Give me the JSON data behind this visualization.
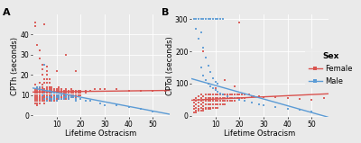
{
  "panel_A": {
    "label": "A",
    "ylabel": "CPTh (seconds)",
    "xlabel": "Lifetime Ostracism",
    "xlim": [
      0,
      57
    ],
    "ylim": [
      -1,
      50
    ],
    "xticks": [
      10,
      20,
      30,
      40,
      50
    ],
    "yticks": [
      0,
      10,
      20,
      30,
      40
    ],
    "female_line_x": [
      0,
      57
    ],
    "female_line_y": [
      11.5,
      12.3
    ],
    "male_line_x": [
      0,
      57
    ],
    "male_line_y": [
      13.5,
      0.5
    ],
    "female_points": [
      [
        1,
        46
      ],
      [
        1,
        44
      ],
      [
        2,
        35
      ],
      [
        3,
        32
      ],
      [
        3,
        28
      ],
      [
        4,
        25
      ],
      [
        4,
        23
      ],
      [
        4,
        20
      ],
      [
        5,
        45
      ],
      [
        5,
        18
      ],
      [
        5,
        16
      ],
      [
        6,
        24
      ],
      [
        6,
        22
      ],
      [
        6,
        20
      ],
      [
        6,
        18
      ],
      [
        6,
        16
      ],
      [
        6,
        14
      ],
      [
        7,
        18
      ],
      [
        7,
        16
      ],
      [
        7,
        14
      ],
      [
        7,
        12
      ],
      [
        7,
        10
      ],
      [
        1,
        15
      ],
      [
        1,
        13
      ],
      [
        1,
        12
      ],
      [
        1,
        11
      ],
      [
        1,
        10
      ],
      [
        1,
        9
      ],
      [
        1,
        8
      ],
      [
        1,
        7
      ],
      [
        1,
        6
      ],
      [
        2,
        14
      ],
      [
        2,
        13
      ],
      [
        2,
        12
      ],
      [
        2,
        11
      ],
      [
        2,
        10
      ],
      [
        2,
        9
      ],
      [
        2,
        8
      ],
      [
        2,
        7
      ],
      [
        2,
        6
      ],
      [
        2,
        5
      ],
      [
        3,
        16
      ],
      [
        3,
        14
      ],
      [
        3,
        13
      ],
      [
        3,
        12
      ],
      [
        3,
        11
      ],
      [
        3,
        10
      ],
      [
        3,
        9
      ],
      [
        3,
        8
      ],
      [
        3,
        7
      ],
      [
        3,
        6
      ],
      [
        4,
        15
      ],
      [
        4,
        14
      ],
      [
        4,
        13
      ],
      [
        4,
        12
      ],
      [
        4,
        11
      ],
      [
        4,
        10
      ],
      [
        4,
        9
      ],
      [
        4,
        8
      ],
      [
        4,
        7
      ],
      [
        5,
        13
      ],
      [
        5,
        12
      ],
      [
        5,
        11
      ],
      [
        5,
        10
      ],
      [
        5,
        9
      ],
      [
        5,
        8
      ],
      [
        5,
        7
      ],
      [
        5,
        6
      ],
      [
        6,
        13
      ],
      [
        6,
        12
      ],
      [
        6,
        11
      ],
      [
        6,
        10
      ],
      [
        6,
        9
      ],
      [
        6,
        8
      ],
      [
        6,
        7
      ],
      [
        7,
        14
      ],
      [
        7,
        13
      ],
      [
        7,
        12
      ],
      [
        7,
        11
      ],
      [
        7,
        9
      ],
      [
        7,
        8
      ],
      [
        7,
        7
      ],
      [
        8,
        14
      ],
      [
        8,
        13
      ],
      [
        8,
        12
      ],
      [
        8,
        11
      ],
      [
        8,
        10
      ],
      [
        8,
        9
      ],
      [
        8,
        8
      ],
      [
        8,
        7
      ],
      [
        9,
        13
      ],
      [
        9,
        12
      ],
      [
        9,
        11
      ],
      [
        9,
        10
      ],
      [
        9,
        9
      ],
      [
        9,
        8
      ],
      [
        9,
        7
      ],
      [
        10,
        22
      ],
      [
        10,
        13
      ],
      [
        10,
        12
      ],
      [
        10,
        11
      ],
      [
        10,
        10
      ],
      [
        10,
        9
      ],
      [
        10,
        8
      ],
      [
        10,
        7
      ],
      [
        11,
        14
      ],
      [
        11,
        13
      ],
      [
        11,
        12
      ],
      [
        11,
        11
      ],
      [
        11,
        10
      ],
      [
        11,
        9
      ],
      [
        11,
        8
      ],
      [
        12,
        13
      ],
      [
        12,
        12
      ],
      [
        12,
        11
      ],
      [
        12,
        10
      ],
      [
        12,
        9
      ],
      [
        12,
        8
      ],
      [
        13,
        12
      ],
      [
        13,
        11
      ],
      [
        13,
        10
      ],
      [
        13,
        9
      ],
      [
        13,
        8
      ],
      [
        14,
        30
      ],
      [
        14,
        13
      ],
      [
        14,
        12
      ],
      [
        14,
        11
      ],
      [
        14,
        10
      ],
      [
        14,
        9
      ],
      [
        14,
        8
      ],
      [
        15,
        12
      ],
      [
        15,
        11
      ],
      [
        15,
        10
      ],
      [
        15,
        9
      ],
      [
        15,
        8
      ],
      [
        16,
        13
      ],
      [
        16,
        12
      ],
      [
        16,
        11
      ],
      [
        16,
        10
      ],
      [
        16,
        9
      ],
      [
        17,
        12
      ],
      [
        17,
        11
      ],
      [
        17,
        10
      ],
      [
        17,
        9
      ],
      [
        18,
        22
      ],
      [
        18,
        12
      ],
      [
        18,
        11
      ],
      [
        18,
        10
      ],
      [
        18,
        9
      ],
      [
        19,
        12
      ],
      [
        19,
        11
      ],
      [
        19,
        10
      ],
      [
        20,
        12
      ],
      [
        20,
        11
      ],
      [
        20,
        10
      ],
      [
        22,
        12
      ],
      [
        22,
        11
      ],
      [
        24,
        12
      ],
      [
        26,
        13
      ],
      [
        28,
        13
      ],
      [
        30,
        13
      ],
      [
        35,
        13
      ],
      [
        40,
        12
      ],
      [
        45,
        12
      ],
      [
        50,
        12
      ],
      [
        55,
        12
      ]
    ],
    "male_points": [
      [
        2,
        14
      ],
      [
        3,
        14
      ],
      [
        4,
        10
      ],
      [
        5,
        25
      ],
      [
        5,
        11
      ],
      [
        5,
        8
      ],
      [
        6,
        12
      ],
      [
        6,
        9
      ],
      [
        6,
        7
      ],
      [
        7,
        12
      ],
      [
        7,
        9
      ],
      [
        7,
        8
      ],
      [
        8,
        11
      ],
      [
        8,
        10
      ],
      [
        8,
        8
      ],
      [
        8,
        7
      ],
      [
        9,
        11
      ],
      [
        9,
        9
      ],
      [
        9,
        8
      ],
      [
        10,
        10
      ],
      [
        10,
        9
      ],
      [
        10,
        7
      ],
      [
        11,
        10
      ],
      [
        11,
        9
      ],
      [
        11,
        8
      ],
      [
        12,
        10
      ],
      [
        12,
        8
      ],
      [
        13,
        9
      ],
      [
        13,
        8
      ],
      [
        14,
        10
      ],
      [
        14,
        9
      ],
      [
        15,
        9
      ],
      [
        15,
        8
      ],
      [
        16,
        9
      ],
      [
        17,
        9
      ],
      [
        18,
        8
      ],
      [
        18,
        7
      ],
      [
        20,
        8
      ],
      [
        22,
        7
      ],
      [
        24,
        7
      ],
      [
        28,
        6
      ],
      [
        30,
        5
      ],
      [
        35,
        5
      ],
      [
        40,
        4
      ],
      [
        45,
        3
      ],
      [
        50,
        2
      ]
    ]
  },
  "panel_B": {
    "label": "B",
    "ylabel": "CPTol (seconds)",
    "xlabel": "Lifetime Ostracism",
    "xlim": [
      0,
      57
    ],
    "ylim": [
      -5,
      315
    ],
    "xticks": [
      10,
      20,
      30,
      40,
      50
    ],
    "yticks": [
      0,
      100,
      200,
      300
    ],
    "female_line_x": [
      0,
      57
    ],
    "female_line_y": [
      48,
      68
    ],
    "male_line_x": [
      0,
      57
    ],
    "male_line_y": [
      115,
      -5
    ],
    "female_points": [
      [
        1,
        50
      ],
      [
        1,
        40
      ],
      [
        1,
        30
      ],
      [
        1,
        20
      ],
      [
        1,
        10
      ],
      [
        2,
        55
      ],
      [
        2,
        45
      ],
      [
        2,
        35
      ],
      [
        2,
        25
      ],
      [
        2,
        15
      ],
      [
        2,
        10
      ],
      [
        3,
        60
      ],
      [
        3,
        50
      ],
      [
        3,
        40
      ],
      [
        3,
        30
      ],
      [
        3,
        20
      ],
      [
        3,
        15
      ],
      [
        4,
        65
      ],
      [
        4,
        55
      ],
      [
        4,
        45
      ],
      [
        4,
        35
      ],
      [
        4,
        25
      ],
      [
        4,
        15
      ],
      [
        5,
        200
      ],
      [
        5,
        60
      ],
      [
        5,
        50
      ],
      [
        5,
        40
      ],
      [
        5,
        30
      ],
      [
        5,
        20
      ],
      [
        5,
        15
      ],
      [
        6,
        65
      ],
      [
        6,
        55
      ],
      [
        6,
        45
      ],
      [
        6,
        35
      ],
      [
        6,
        25
      ],
      [
        6,
        20
      ],
      [
        7,
        65
      ],
      [
        7,
        55
      ],
      [
        7,
        45
      ],
      [
        7,
        35
      ],
      [
        7,
        25
      ],
      [
        7,
        20
      ],
      [
        8,
        65
      ],
      [
        8,
        55
      ],
      [
        8,
        45
      ],
      [
        8,
        35
      ],
      [
        8,
        25
      ],
      [
        8,
        20
      ],
      [
        9,
        65
      ],
      [
        9,
        55
      ],
      [
        9,
        45
      ],
      [
        9,
        35
      ],
      [
        9,
        25
      ],
      [
        10,
        85
      ],
      [
        10,
        65
      ],
      [
        10,
        55
      ],
      [
        10,
        45
      ],
      [
        10,
        35
      ],
      [
        10,
        25
      ],
      [
        11,
        65
      ],
      [
        11,
        55
      ],
      [
        11,
        45
      ],
      [
        11,
        35
      ],
      [
        11,
        25
      ],
      [
        12,
        65
      ],
      [
        12,
        55
      ],
      [
        12,
        45
      ],
      [
        12,
        35
      ],
      [
        13,
        65
      ],
      [
        13,
        55
      ],
      [
        13,
        45
      ],
      [
        13,
        35
      ],
      [
        14,
        110
      ],
      [
        14,
        65
      ],
      [
        14,
        55
      ],
      [
        14,
        45
      ],
      [
        14,
        35
      ],
      [
        15,
        65
      ],
      [
        15,
        55
      ],
      [
        15,
        45
      ],
      [
        16,
        65
      ],
      [
        16,
        55
      ],
      [
        16,
        45
      ],
      [
        17,
        65
      ],
      [
        17,
        55
      ],
      [
        17,
        45
      ],
      [
        18,
        90
      ],
      [
        18,
        65
      ],
      [
        18,
        55
      ],
      [
        18,
        45
      ],
      [
        19,
        65
      ],
      [
        19,
        55
      ],
      [
        20,
        290
      ],
      [
        20,
        65
      ],
      [
        20,
        55
      ],
      [
        21,
        65
      ],
      [
        21,
        55
      ],
      [
        22,
        65
      ],
      [
        22,
        55
      ],
      [
        24,
        65
      ],
      [
        25,
        60
      ],
      [
        26,
        60
      ],
      [
        28,
        60
      ],
      [
        30,
        58
      ],
      [
        35,
        58
      ],
      [
        40,
        55
      ],
      [
        45,
        52
      ],
      [
        50,
        50
      ],
      [
        55,
        55
      ]
    ],
    "male_points": [
      [
        1,
        300
      ],
      [
        2,
        300
      ],
      [
        3,
        300
      ],
      [
        4,
        300
      ],
      [
        5,
        300
      ],
      [
        6,
        300
      ],
      [
        7,
        300
      ],
      [
        8,
        300
      ],
      [
        9,
        300
      ],
      [
        10,
        300
      ],
      [
        11,
        300
      ],
      [
        12,
        300
      ],
      [
        13,
        300
      ],
      [
        2,
        270
      ],
      [
        3,
        240
      ],
      [
        4,
        260
      ],
      [
        5,
        210
      ],
      [
        6,
        180
      ],
      [
        7,
        155
      ],
      [
        8,
        135
      ],
      [
        9,
        115
      ],
      [
        10,
        105
      ],
      [
        11,
        100
      ],
      [
        4,
        150
      ],
      [
        5,
        125
      ],
      [
        6,
        112
      ],
      [
        7,
        100
      ],
      [
        8,
        90
      ],
      [
        9,
        85
      ],
      [
        10,
        80
      ],
      [
        11,
        75
      ],
      [
        12,
        70
      ],
      [
        13,
        65
      ],
      [
        15,
        60
      ],
      [
        18,
        55
      ],
      [
        20,
        50
      ],
      [
        22,
        45
      ],
      [
        25,
        40
      ],
      [
        28,
        35
      ],
      [
        30,
        32
      ],
      [
        35,
        28
      ],
      [
        40,
        22
      ],
      [
        45,
        18
      ],
      [
        50,
        12
      ]
    ]
  },
  "female_color": "#d9534f",
  "male_color": "#5b9bd5",
  "bg_color": "#eaeaea",
  "grid_color": "#ffffff",
  "point_size": 2.5,
  "line_width": 1.0,
  "font_size": 6,
  "label_font_size": 7,
  "tick_font_size": 5.5,
  "legend_title": "Sex",
  "legend_female": "Female",
  "legend_male": "Male"
}
